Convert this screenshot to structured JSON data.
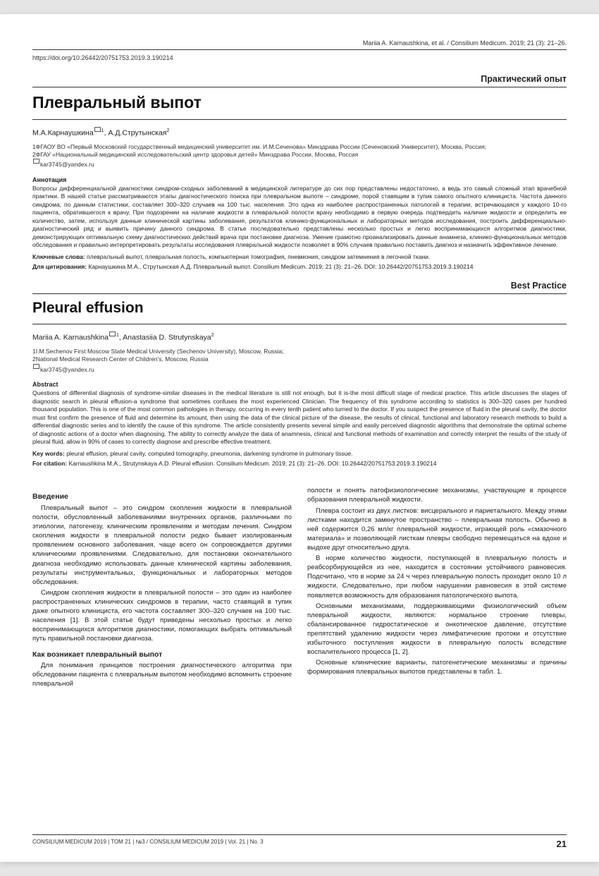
{
  "header_citation": "Mariia A. Karnaushkina, et al. / Consilium Medicum. 2019; 21 (3): 21–26.",
  "doi_url": "https://doi.org/10.26442/20751753.2019.3.190214",
  "ru": {
    "category": "Практический опыт",
    "title": "Плевральный выпот",
    "authors_html": "М.А.Карнаушкина",
    "author1_sup": "1",
    "authors_html2": ", А.Д.Струтынская",
    "author2_sup": "2",
    "affil1": "1ФГАОУ ВО «Первый Московский государственный медицинский университет им. И.М.Сеченова» Минздрава России (Сеченовский Университет), Москва, Россия;",
    "affil2": "2ФГАУ «Национальный медицинский исследовательский центр здоровья детей» Минздрава России, Москва, Россия",
    "email": "kar3745@yandex.ru",
    "abstract_label": "Аннотация",
    "abstract": "Вопросы дифференциальной диагностики синдром-сходных заболеваний в медицинской литературе до сих пор представлены недостаточно, а ведь это самый сложный этап врачебной практики. В нашей статье рассматриваются этапы диагностического поиска при плевральном выпоте – синдроме, порой ставящим в тупик самого опытного клинициста. Частота данного синдрома, по данным статистики, составляет 300–320 случаев на 100 тыс. населения. Это одна из наиболее распространенных патологий в терапии, встречающаяся у каждого 10-го пациента, обратившегося к врачу. При подозрении на наличие жидкости в плевральной полости врачу необходимо в первую очередь подтвердить наличие жидкости и определить ее количество, затем, используя данные клинической картины заболевания, результатов клинико-функциональных и лабораторных методов исследования, построить дифференциально-диагностический ряд и выявить причину данного синдрома. В статье последовательно представлены несколько простых и легко воспринимающихся алгоритмов диагностики, демонстрирующих оптимальную схему диагностических действий врача при постановке диагноза. Умение грамотно проанализировать данные анамнеза, клинико-функциональных методов обследования и правильно интерпретировать результаты исследования плевральной жидкости позволяет в 90% случаев правильно поставить диагноз и назначить эффективное лечение.",
    "keywords_label": "Ключевые слова:",
    "keywords": " плевральный выпот, плевральная полость, компьютерная томография, пневмония, синдром затемнения в легочной ткани.",
    "citation_label": "Для цитирования:",
    "citation": " Карнаушкина М.А., Струтынская А.Д. Плевральный выпот. Consilium Medicum. 2019; 21 (3): 21–26. DOI: 10.26442/20751753.2019.3.190214"
  },
  "en": {
    "category": "Best Practice",
    "title": "Pleural effusion",
    "author1": "Mariia A. Karnaushkina",
    "author1_sup": "1",
    "author2": ", Anastasiia D. Strutynskaya",
    "author2_sup": "2",
    "affil1": "1I.M.Sechenov First Moscow State Medical University (Sechenov University), Moscow, Russia;",
    "affil2": "2National Medical Research Center of Children's, Moscow, Russia",
    "email": "kar3745@yandex.ru",
    "abstract_label": "Abstract",
    "abstract": "Questions of differential diagnosis of syndrome-similar diseases in the medical literature is still not enough, but it is-the most difficult stage of medical practice. This article discusses the stages of diagnostic search in pleural effusion-a syndrome that sometimes confuses the most experienced Clinician. The frequency of this syndrome according to statistics is 300–320 cases per hundred thousand population. This is one of the most common pathologies in therapy, occurring in every tenth patient who turned to the doctor. If you suspect the presence of fluid in the pleural cavity, the doctor must first confirm the presence of fluid and determine its amount, then using the data of the clinical picture of the disease, the results of clinical, functional and laboratory research methods to build a differential diagnostic series and to identify the cause of this syndrome. The article consistently presents several simple and easily perceived diagnostic algorithms that demonstrate the optimal scheme of diagnostic actions of a doctor when diagnosing. The ability to correctly analyze the data of anamnesis, clinical and functional methods of examination and correctly interpret the results of the study of pleural fluid, allow in 90% of cases to correctly diagnose and prescribe effective treatment.",
    "keywords_label": "Key words:",
    "keywords": " pleural effusion, pleural cavity, computed tomography, pneumonia, darkening syndrome in pulmonary tissue.",
    "citation_label": "For citation:",
    "citation": " Karnaushkina M.A., Strutynskaya A.D. Pleural effusion. Consilium Medicum. 2019; 21 (3): 21–26. DOI: 10.26442/20751753.2019.3.190214"
  },
  "body": {
    "intro_heading": "Введение",
    "intro_p1": "Плевральный выпот – это синдром скопления жидкости в плевральной полости, обусловленный заболеваниями внутренних органов, различными по этиологии, патогенезу, клиническим проявлениям и методам лечения. Синдром скопления жидкости в плевральной полости редко бывает изолированным проявлением основного заболевания, чаще всего он сопровождается другими клиническими проявлениями. Следовательно, для постановки окончательного диагноза необходимо использовать данные клинической картины заболевания, результаты инструментальных, функциональных и лабораторных методов обследования.",
    "intro_p2": "Синдром скопления жидкости в плевральной полости – это один из наиболее распространенных клинических синдромов в терапии, часто ставящий в тупик даже опытного клинициста, его частота составляет 300–320 случаев на 100 тыс. населения [1]. В этой статье будут приведены несколько простых и легко воспринимающихся алгоритмов диагностики, помогающих выбрать оптимальный путь правильной постановки диагноза.",
    "how_heading": "Как возникает плевральный выпот",
    "how_p1": "Для понимания принципов построения диагностического алгоритма при обследовании пациента с плевральным выпотом необходимо вспомнить строение плевральной",
    "col2_p1": "полости и понять патофизиологические механизмы, участвующие в процессе образования плевральной жидкости.",
    "col2_p2": "Плевра состоит из двух листков: висцерального и париетального. Между этими листками находится замкнутое пространство – плевральная полость. Обычно в ней содержится 0,26 мл/кг плевральной жидкости, играющей роль «смазочного материала» и позволяющей листкам плевры свободно перемещаться на вдохе и выдохе друг относительно друга.",
    "col2_p3": "В норме количество жидкости, поступающей в плевральную полость и реабсорбирующейся из нее, находится в состоянии устойчивого равновесия. Подсчитано, что в норме за 24 ч через плевральную полость проходит около 10 л жидкости. Следовательно, при любом нарушении равновесия в этой системе появляется возможность для образования патологического выпота.",
    "col2_p4": "Основными механизмами, поддерживающими физиологический объем плевральной жидкости, являются: нормальное строение плевры, сбалансированное гидростатическое и онкотическое давление, отсутствие препятствий удалению жидкости через лимфатические протоки и отсутствие избыточного поступления жидкости в плевральную полость вследствие воспалительного процесса [1, 2].",
    "col2_p5": "Основные клинические варианты, патогенетические механизмы и причины формирования плевральных выпотов представлены в табл. 1."
  },
  "footer": {
    "left": "CONSILIUM MEDICUM 2019 | ТОМ 21 | №3 / CONSILIUM MEDICUM 2019 | Vol. 21 | No. 3",
    "pagenum": "21"
  }
}
